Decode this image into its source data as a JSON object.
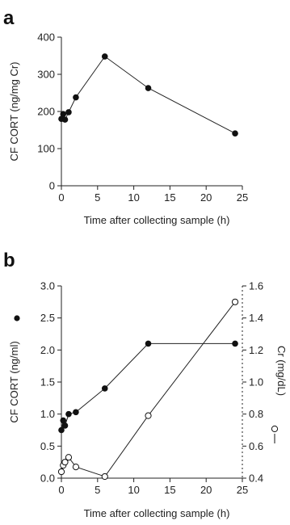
{
  "chart_data": [
    {
      "panel": "a",
      "type": "line",
      "xlabel": "Time after collecting sample (h)",
      "ylabel": "CF CORT (ng/mg Cr)",
      "xlim": [
        0,
        25
      ],
      "ylim": [
        0,
        400
      ],
      "xticks": [
        "0",
        "5",
        "10",
        "15",
        "20",
        "25"
      ],
      "yticks": [
        "0",
        "100",
        "200",
        "300",
        "400"
      ],
      "series": [
        {
          "marker": "filled",
          "x": [
            0,
            0.25,
            0.5,
            1,
            2,
            6,
            12,
            24
          ],
          "y": [
            180,
            193,
            178,
            198,
            238,
            348,
            263,
            141
          ]
        }
      ]
    },
    {
      "panel": "b",
      "type": "line",
      "xlabel": "Time after collecting sample (h)",
      "ylabel": "CF CORT (ng/ml)",
      "y2label": "Cr (mg/dL)",
      "xlim": [
        0,
        25
      ],
      "ylim": [
        0,
        3.0
      ],
      "y2lim": [
        0.4,
        1.6
      ],
      "xticks": [
        "0",
        "5",
        "10",
        "15",
        "20",
        "25"
      ],
      "yticks": [
        "0.0",
        "0.5",
        "1.0",
        "1.5",
        "2.0",
        "2.5",
        "3.0"
      ],
      "y2ticks": [
        "0.4",
        "0.6",
        "0.8",
        "1.0",
        "1.2",
        "1.4",
        "1.6"
      ],
      "series": [
        {
          "axis": "left",
          "marker": "filled",
          "x": [
            0,
            0.25,
            0.5,
            1,
            2,
            6,
            12,
            24
          ],
          "y": [
            0.75,
            0.9,
            0.82,
            1.0,
            1.03,
            1.4,
            2.1,
            2.1
          ]
        },
        {
          "axis": "right",
          "marker": "open",
          "x": [
            0,
            0.25,
            0.5,
            1,
            2,
            6,
            12,
            24
          ],
          "y": [
            0.44,
            0.48,
            0.5,
            0.53,
            0.47,
            0.41,
            0.79,
            1.5
          ]
        }
      ]
    }
  ]
}
